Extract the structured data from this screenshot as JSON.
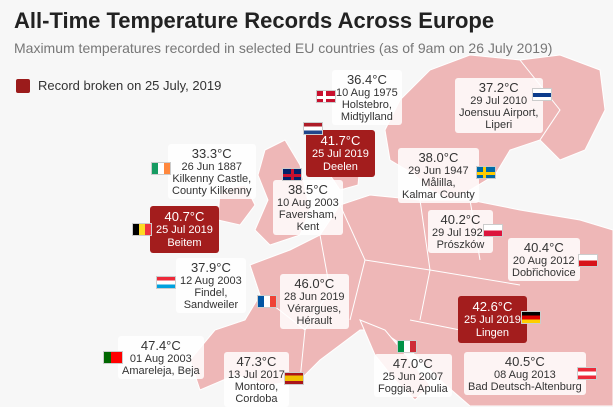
{
  "title": "All-Time Temperature Records Across Europe",
  "subtitle": "Maximum temperatures recorded in selected EU countries (as of 9am on 26 July 2019)",
  "legend": {
    "label": "Record broken on 25 July, 2019",
    "color": "#9b1b1b"
  },
  "records": [
    {
      "id": "denmark",
      "temp": "36.4°C",
      "date": "10 Aug 1975",
      "place1": "Holstebro,",
      "place2": "Midtjylland",
      "broken": false
    },
    {
      "id": "finland",
      "temp": "37.2°C",
      "date": "29 Jul 2010",
      "place1": "Joensuu Airport,",
      "place2": "Liperi",
      "broken": false
    },
    {
      "id": "ireland",
      "temp": "33.3°C",
      "date": "26 Jun 1887",
      "place1": "Kilkenny Castle,",
      "place2": "County Kilkenny",
      "broken": false
    },
    {
      "id": "netherlands",
      "temp": "41.7°C",
      "date": "25 Jul 2019",
      "place1": "Deelen",
      "place2": "",
      "broken": true
    },
    {
      "id": "sweden",
      "temp": "38.0°C",
      "date": "29 Jun 1947",
      "place1": "Målilla,",
      "place2": "Kalmar County",
      "broken": false
    },
    {
      "id": "uk",
      "temp": "38.5°C",
      "date": "10 Aug 2003",
      "place1": "Faversham,",
      "place2": "Kent",
      "broken": false
    },
    {
      "id": "belgium",
      "temp": "40.7°C",
      "date": "25 Jul 2019",
      "place1": "Beitem",
      "place2": "",
      "broken": true
    },
    {
      "id": "poland",
      "temp": "40.2°C",
      "date": "29 Jul 1921",
      "place1": "Prószków",
      "place2": "",
      "broken": false
    },
    {
      "id": "czech",
      "temp": "40.4°C",
      "date": "20 Aug 2012",
      "place1": "Dobřichovice",
      "place2": "",
      "broken": false
    },
    {
      "id": "luxembourg",
      "temp": "37.9°C",
      "date": "12 Aug 2003",
      "place1": "Findel,",
      "place2": "Sandweiler",
      "broken": false
    },
    {
      "id": "france",
      "temp": "46.0°C",
      "date": "28 Jun 2019",
      "place1": "Vérargues,",
      "place2": "Hérault",
      "broken": false
    },
    {
      "id": "germany",
      "temp": "42.6°C",
      "date": "25 Jul 2019",
      "place1": "Lingen",
      "place2": "",
      "broken": true
    },
    {
      "id": "portugal",
      "temp": "47.4°C",
      "date": "01 Aug 2003",
      "place1": "Amareleja, Beja",
      "place2": "",
      "broken": false
    },
    {
      "id": "spain",
      "temp": "47.3°C",
      "date": "13 Jul 2017",
      "place1": "Montoro,",
      "place2": "Cordoba",
      "broken": false
    },
    {
      "id": "italy",
      "temp": "47.0°C",
      "date": "25 Jun 2007",
      "place1": "Foggia, Apulia",
      "place2": "",
      "broken": false
    },
    {
      "id": "austria",
      "temp": "40.5°C",
      "date": "08 Aug 2013",
      "place1": "Bad Deutsch-Altenburg",
      "place2": "",
      "broken": false
    }
  ]
}
